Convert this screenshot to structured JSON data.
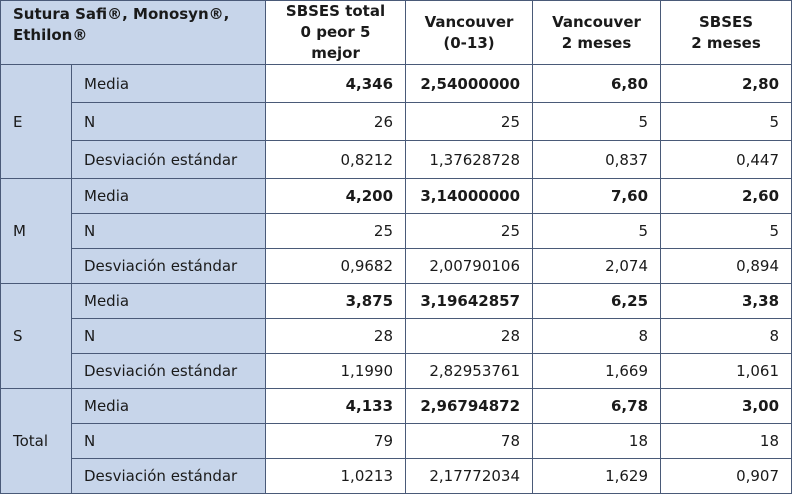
{
  "header": {
    "corner": "Sutura Safi®, Monosyn®, Ethilon®",
    "col1_line1": "SBSES total",
    "col1_line2": "0 peor 5 mejor",
    "col2_line1": "Vancouver",
    "col2_line2": "(0-13)",
    "col3_line1": "Vancouver",
    "col3_line2": "2 meses",
    "col4_line1": "SBSES",
    "col4_line2": "2 meses"
  },
  "groups": [
    {
      "label": "E",
      "rows": [
        {
          "stat": "Media",
          "values": [
            "4,346",
            "2,54000000",
            "6,80",
            "2,80"
          ]
        },
        {
          "stat": "N",
          "values": [
            "26",
            "25",
            "5",
            "5"
          ]
        },
        {
          "stat": "Desviación estándar",
          "values": [
            "0,8212",
            "1,37628728",
            "0,837",
            "0,447"
          ]
        }
      ]
    },
    {
      "label": "M",
      "rows": [
        {
          "stat": "Media",
          "values": [
            "4,200",
            "3,14000000",
            "7,60",
            "2,60"
          ]
        },
        {
          "stat": "N",
          "values": [
            "25",
            "25",
            "5",
            "5"
          ]
        },
        {
          "stat": "Desviación estándar",
          "values": [
            "0,9682",
            "2,00790106",
            "2,074",
            "0,894"
          ]
        }
      ]
    },
    {
      "label": "S",
      "rows": [
        {
          "stat": "Media",
          "values": [
            "3,875",
            "3,19642857",
            "6,25",
            "3,38"
          ]
        },
        {
          "stat": "N",
          "values": [
            "28",
            "28",
            "8",
            "8"
          ]
        },
        {
          "stat": "Desviación estándar",
          "values": [
            "1,1990",
            "2,82953761",
            "1,669",
            "1,061"
          ]
        }
      ]
    },
    {
      "label": "Total",
      "rows": [
        {
          "stat": "Media",
          "values": [
            "4,133",
            "2,96794872",
            "6,78",
            "3,00"
          ]
        },
        {
          "stat": "N",
          "values": [
            "79",
            "78",
            "18",
            "18"
          ]
        },
        {
          "stat": "Desviación estándar",
          "values": [
            "1,0213",
            "2,17772034",
            "1,629",
            "0,907"
          ]
        }
      ]
    }
  ]
}
